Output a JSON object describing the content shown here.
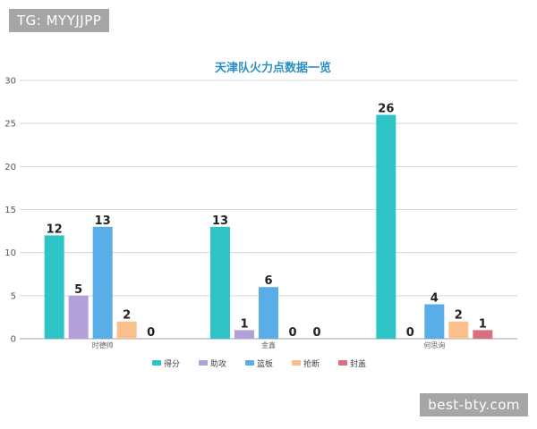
{
  "watermarks": {
    "top": "TG: MYYJJPP",
    "bottom": "best-bty.com"
  },
  "chart_data": {
    "type": "bar",
    "title": "天津队火力点数据一览",
    "xlabel": "",
    "ylabel": "",
    "ylim": [
      0,
      30
    ],
    "yticks": [
      0,
      5,
      10,
      15,
      20,
      25,
      30
    ],
    "categories": [
      "时德帅",
      "金鑫",
      "何思询"
    ],
    "series": [
      {
        "name": "得分",
        "color": "#2ec4c6",
        "values": [
          12,
          13,
          26
        ]
      },
      {
        "name": "助攻",
        "color": "#b3a0d9",
        "values": [
          5,
          1,
          0
        ]
      },
      {
        "name": "篮板",
        "color": "#5aaee8",
        "values": [
          13,
          6,
          4
        ]
      },
      {
        "name": "抢断",
        "color": "#f9bf8c",
        "values": [
          2,
          0,
          2
        ]
      },
      {
        "name": "封盖",
        "color": "#d9707f",
        "values": [
          0,
          0,
          1
        ]
      }
    ],
    "grid": true,
    "legend": "bottom"
  }
}
